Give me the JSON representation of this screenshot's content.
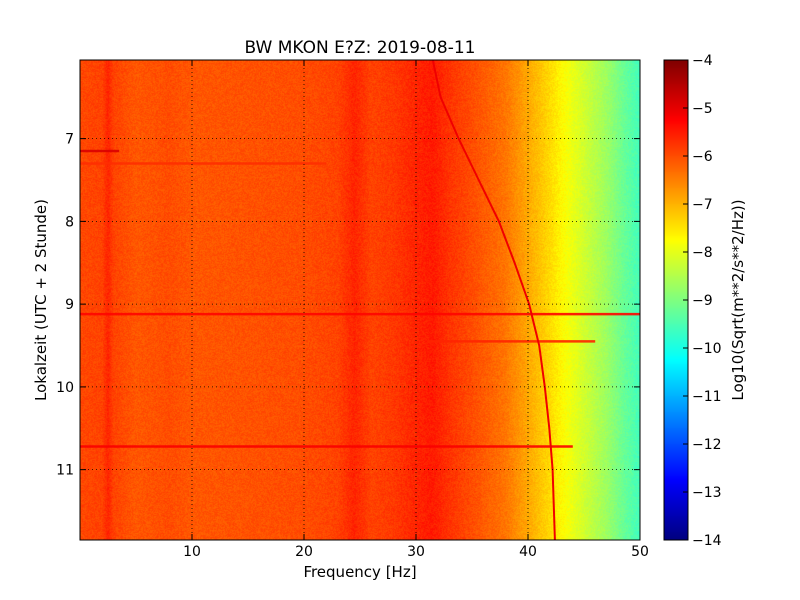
{
  "chart_data": {
    "type": "heatmap",
    "title": "BW MKON E?Z: 2019-08-11",
    "xlabel": "Frequency [Hz]",
    "ylabel": "Lokalzeit (UTC + 2 Stunde)",
    "xlim": [
      0,
      50
    ],
    "ylim": [
      11.85,
      6.05
    ],
    "y_inverted": true,
    "x_ticks": [
      10,
      20,
      30,
      40,
      50
    ],
    "x_tick_labels": [
      "10",
      "20",
      "30",
      "40",
      "50"
    ],
    "y_ticks": [
      7,
      8,
      9,
      10,
      11
    ],
    "y_tick_labels": [
      "7",
      "8",
      "9",
      "10",
      "11"
    ],
    "grid": true,
    "colormap": "jet",
    "colorbar": {
      "label": "Log10(Sqrt(m**2/s**2/Hz))",
      "min": -14,
      "max": -4,
      "ticks": [
        -4,
        -5,
        -6,
        -7,
        -8,
        -9,
        -10,
        -11,
        -12,
        -13,
        -14
      ],
      "tick_labels": [
        "−4",
        "−5",
        "−6",
        "−7",
        "−8",
        "−9",
        "−10",
        "−11",
        "−12",
        "−13",
        "−14"
      ]
    },
    "spectral_profile": {
      "frequency_hz": [
        0,
        2,
        2.5,
        3,
        5,
        8,
        10,
        15,
        20,
        23,
        24.5,
        26,
        28,
        30,
        31.5,
        33,
        35,
        38,
        40,
        42,
        43,
        45,
        47,
        48.5,
        50
      ],
      "log_amplitude": [
        -5.95,
        -5.9,
        -5.6,
        -5.9,
        -6.1,
        -6.0,
        -6.1,
        -6.05,
        -6.0,
        -5.9,
        -5.6,
        -5.9,
        -5.8,
        -5.6,
        -5.5,
        -5.75,
        -6.0,
        -6.4,
        -6.9,
        -7.4,
        -7.7,
        -8.2,
        -8.7,
        -9.2,
        -9.6
      ]
    },
    "tremor_line": {
      "time_h": [
        6.05,
        6.5,
        7.0,
        7.5,
        8.0,
        8.5,
        9.0,
        9.5,
        10.0,
        10.5,
        11.0,
        11.85
      ],
      "frequency_hz": [
        31.5,
        32.2,
        33.8,
        35.6,
        37.4,
        38.8,
        40.1,
        41.0,
        41.5,
        41.9,
        42.2,
        42.4
      ]
    },
    "horizontal_bands": [
      {
        "time_h": 7.15,
        "f_from": 0,
        "f_to": 3.5,
        "log_amplitude": -4.9
      },
      {
        "time_h": 7.3,
        "f_from": 0,
        "f_to": 22,
        "log_amplitude": -5.7
      },
      {
        "time_h": 9.12,
        "f_from": 0,
        "f_to": 50,
        "log_amplitude": -5.3
      },
      {
        "time_h": 9.45,
        "f_from": 31,
        "f_to": 46,
        "log_amplitude": -5.6
      },
      {
        "time_h": 10.72,
        "f_from": 0,
        "f_to": 44,
        "log_amplitude": -5.2
      }
    ]
  }
}
